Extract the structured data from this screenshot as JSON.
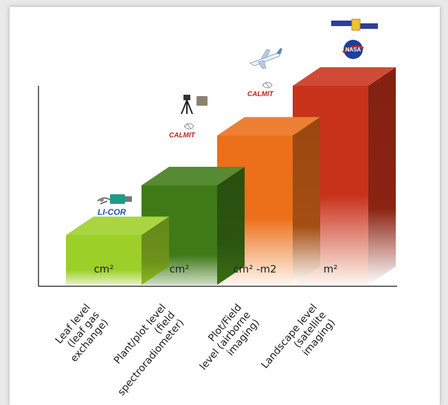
{
  "chart_data": {
    "type": "bar",
    "style": "3d-staircase",
    "categories": [
      [
        "Leaf level",
        "(leaf gas",
        "exchange)"
      ],
      [
        "Plant/plot level",
        "(field",
        "spectroradiometer)"
      ],
      [
        "Plot/Field",
        "level (airborne",
        "imaging)"
      ],
      [
        "Landscape level",
        "(satellite",
        "imaging)"
      ]
    ],
    "values": [
      1,
      2,
      3,
      4
    ],
    "units": [
      "cm²",
      "cm²",
      "cm² -m2",
      "m²"
    ],
    "colors": [
      "#9ccf27",
      "#3f7a17",
      "#ec6f19",
      "#c8321b"
    ],
    "logos": [
      [
        "LI-COR"
      ],
      [
        "CALMIT"
      ],
      [
        "CALMIT"
      ],
      [
        "NASA"
      ]
    ],
    "grid": false,
    "legend": "none"
  }
}
